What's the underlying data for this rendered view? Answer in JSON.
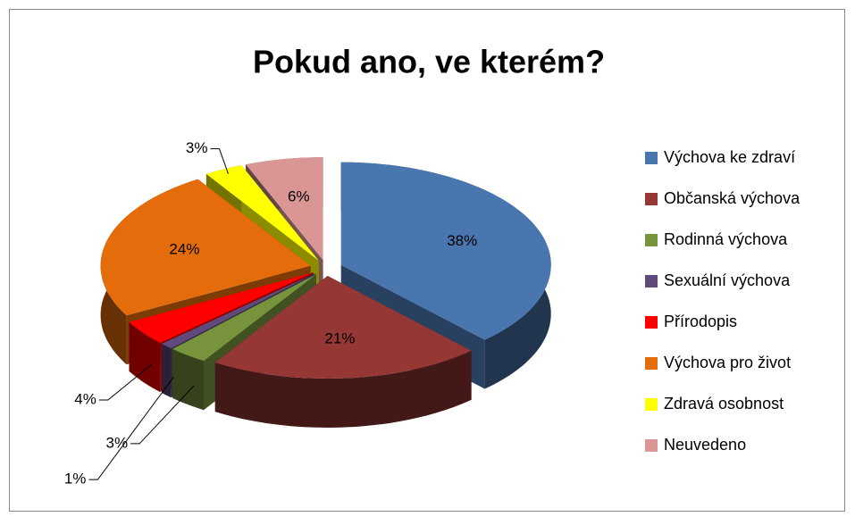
{
  "chart_data": {
    "type": "pie3d",
    "title": "Pokud ano, ve kterém?",
    "categories": [
      "Výchova ke zdraví",
      "Občanská výchova",
      "Rodinná výchova",
      "Sexuální výchova",
      "Přírodopis",
      "Výchova pro život",
      "Zdravá osobnost",
      "Neuvedeno"
    ],
    "values": [
      38,
      21,
      3,
      1,
      4,
      24,
      3,
      6
    ],
    "value_labels": [
      "38%",
      "21%",
      "3%",
      "1%",
      "4%",
      "24%",
      "3%",
      "6%"
    ],
    "colors": [
      "#4a76b0",
      "#953735",
      "#77933c",
      "#604a7b",
      "#ff0000",
      "#e46c0a",
      "#ffff00",
      "#d99694"
    ],
    "legend": "right"
  }
}
